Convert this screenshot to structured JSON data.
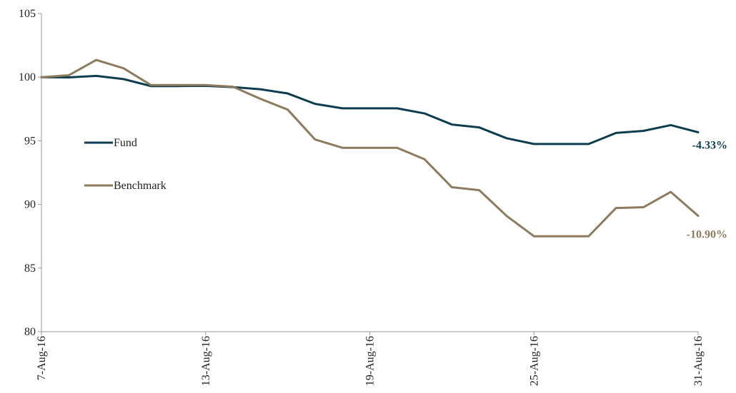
{
  "chart_data": {
    "type": "line",
    "title": "",
    "xlabel": "",
    "ylabel": "",
    "ylim": [
      80,
      105
    ],
    "yticks": [
      80,
      85,
      90,
      95,
      100,
      105
    ],
    "grid": false,
    "legend_position": "left",
    "x": [
      "7-Aug-16",
      "8-Aug-16",
      "9-Aug-16",
      "10-Aug-16",
      "11-Aug-16",
      "12-Aug-16",
      "13-Aug-16",
      "14-Aug-16",
      "15-Aug-16",
      "16-Aug-16",
      "17-Aug-16",
      "18-Aug-16",
      "19-Aug-16",
      "20-Aug-16",
      "21-Aug-16",
      "22-Aug-16",
      "23-Aug-16",
      "24-Aug-16",
      "25-Aug-16",
      "26-Aug-16",
      "27-Aug-16",
      "28-Aug-16",
      "29-Aug-16",
      "30-Aug-16",
      "31-Aug-16"
    ],
    "x_tick_labels": [
      "7-Aug-16",
      "13-Aug-16",
      "19-Aug-16",
      "25-Aug-16",
      "31-Aug-16"
    ],
    "series": [
      {
        "name": "Fund",
        "color": "#0e3d4f",
        "end_label": "-4.33%",
        "values": [
          100.0,
          99.98,
          100.1,
          99.85,
          99.3,
          99.3,
          99.32,
          99.22,
          99.05,
          98.72,
          97.9,
          97.55,
          97.55,
          97.55,
          97.15,
          96.28,
          96.05,
          95.2,
          94.75,
          94.75,
          94.75,
          95.62,
          95.78,
          96.23,
          95.67
        ]
      },
      {
        "name": "Benchmark",
        "color": "#8c7b5f",
        "end_label": "-10.90%",
        "values": [
          100.0,
          100.15,
          101.35,
          100.7,
          99.38,
          99.38,
          99.38,
          99.25,
          98.3,
          97.45,
          95.1,
          94.45,
          94.45,
          94.45,
          93.55,
          91.35,
          91.12,
          89.1,
          87.5,
          87.5,
          87.5,
          89.72,
          89.78,
          90.98,
          89.1
        ]
      }
    ]
  }
}
